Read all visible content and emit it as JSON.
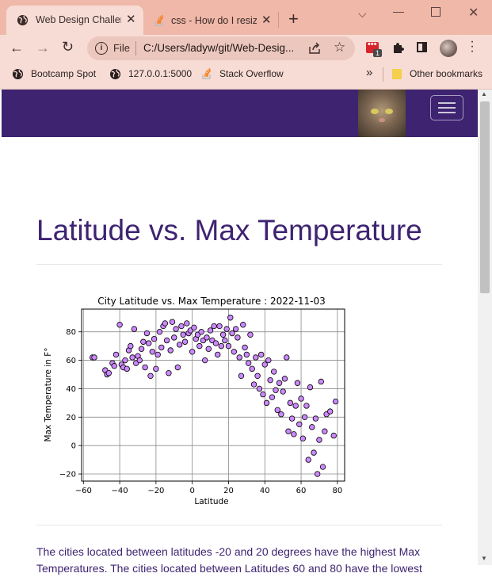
{
  "browser": {
    "tabs": [
      {
        "title": "Web Design Challen",
        "active": true
      },
      {
        "title": "css - How do I resiz",
        "active": false
      }
    ],
    "new_tab_label": "+",
    "address": {
      "security_label": "File",
      "url": "C:/Users/ladyw/git/Web-Desig..."
    },
    "extension_badge": "1",
    "bookmarks": [
      {
        "label": "Bootcamp Spot",
        "icon": "globe-icon"
      },
      {
        "label": "127.0.0.1:5000",
        "icon": "globe-icon"
      },
      {
        "label": "Stack Overflow",
        "icon": "stackoverflow-icon"
      }
    ],
    "more_bookmarks_label": "»",
    "other_bookmarks_label": "Other bookmarks"
  },
  "page": {
    "title": "Latitude vs. Max Temperature",
    "description": "The cities located between latitudes -20 and 20 degrees have the highest Max Temperatures. The cities located between Latitudes 60 and 80 have the lowest"
  },
  "chart_data": {
    "type": "scatter",
    "title": "City Latitude vs. Max Temperature : 2022-11-03",
    "xlabel": "Latitude",
    "ylabel": "Max Temperature in F°",
    "xlim": [
      -61,
      84
    ],
    "ylim": [
      -25,
      96
    ],
    "xticks": [
      -60,
      -40,
      -20,
      0,
      20,
      40,
      60,
      80
    ],
    "yticks": [
      -20,
      0,
      20,
      40,
      60,
      80
    ],
    "grid": true,
    "marker_color": "#cc88ff",
    "marker_edge": "#000000",
    "points": [
      [
        -55,
        62
      ],
      [
        -54,
        62
      ],
      [
        -48,
        53
      ],
      [
        -47,
        50
      ],
      [
        -46,
        51
      ],
      [
        -44,
        58
      ],
      [
        -43,
        56
      ],
      [
        -42,
        64
      ],
      [
        -40,
        85
      ],
      [
        -39,
        57
      ],
      [
        -38,
        55
      ],
      [
        -37,
        60
      ],
      [
        -36,
        54
      ],
      [
        -35,
        67
      ],
      [
        -34,
        70
      ],
      [
        -33,
        62
      ],
      [
        -32,
        82
      ],
      [
        -31,
        58
      ],
      [
        -30,
        63
      ],
      [
        -29,
        60
      ],
      [
        -28,
        68
      ],
      [
        -27,
        73
      ],
      [
        -26,
        55
      ],
      [
        -25,
        79
      ],
      [
        -24,
        72
      ],
      [
        -23,
        49
      ],
      [
        -22,
        66
      ],
      [
        -21,
        75
      ],
      [
        -20,
        54
      ],
      [
        -19,
        64
      ],
      [
        -18,
        80
      ],
      [
        -17,
        69
      ],
      [
        -16,
        84
      ],
      [
        -15,
        86
      ],
      [
        -14,
        74
      ],
      [
        -13,
        51
      ],
      [
        -12,
        67
      ],
      [
        -11,
        87
      ],
      [
        -10,
        76
      ],
      [
        -9,
        82
      ],
      [
        -8,
        55
      ],
      [
        -7,
        71
      ],
      [
        -6,
        84
      ],
      [
        -5,
        78
      ],
      [
        -4,
        73
      ],
      [
        -3,
        86
      ],
      [
        -2,
        79
      ],
      [
        -1,
        81
      ],
      [
        0,
        66
      ],
      [
        1,
        83
      ],
      [
        2,
        75
      ],
      [
        3,
        78
      ],
      [
        4,
        70
      ],
      [
        5,
        80
      ],
      [
        6,
        74
      ],
      [
        7,
        60
      ],
      [
        8,
        76
      ],
      [
        9,
        68
      ],
      [
        10,
        81
      ],
      [
        11,
        74
      ],
      [
        12,
        84
      ],
      [
        13,
        72
      ],
      [
        14,
        64
      ],
      [
        15,
        84
      ],
      [
        16,
        70
      ],
      [
        17,
        78
      ],
      [
        18,
        74
      ],
      [
        19,
        82
      ],
      [
        20,
        70
      ],
      [
        21,
        90
      ],
      [
        22,
        79
      ],
      [
        23,
        66
      ],
      [
        24,
        82
      ],
      [
        25,
        76
      ],
      [
        26,
        62
      ],
      [
        27,
        49
      ],
      [
        28,
        85
      ],
      [
        29,
        69
      ],
      [
        30,
        64
      ],
      [
        31,
        58
      ],
      [
        32,
        78
      ],
      [
        33,
        54
      ],
      [
        34,
        43
      ],
      [
        35,
        62
      ],
      [
        36,
        49
      ],
      [
        37,
        40
      ],
      [
        38,
        64
      ],
      [
        39,
        36
      ],
      [
        40,
        57
      ],
      [
        41,
        30
      ],
      [
        42,
        60
      ],
      [
        43,
        46
      ],
      [
        44,
        34
      ],
      [
        45,
        52
      ],
      [
        46,
        39
      ],
      [
        47,
        25
      ],
      [
        48,
        44
      ],
      [
        49,
        22
      ],
      [
        50,
        38
      ],
      [
        51,
        47
      ],
      [
        52,
        62
      ],
      [
        53,
        10
      ],
      [
        54,
        30
      ],
      [
        55,
        19
      ],
      [
        56,
        8
      ],
      [
        57,
        28
      ],
      [
        58,
        44
      ],
      [
        59,
        15
      ],
      [
        60,
        33
      ],
      [
        61,
        5
      ],
      [
        62,
        20
      ],
      [
        63,
        28
      ],
      [
        64,
        -10
      ],
      [
        65,
        41
      ],
      [
        66,
        13
      ],
      [
        67,
        -5
      ],
      [
        68,
        19
      ],
      [
        69,
        -20
      ],
      [
        70,
        4
      ],
      [
        71,
        45
      ],
      [
        72,
        -15
      ],
      [
        73,
        10
      ],
      [
        74,
        22
      ],
      [
        76,
        24
      ],
      [
        78,
        7
      ],
      [
        79,
        31
      ]
    ]
  }
}
